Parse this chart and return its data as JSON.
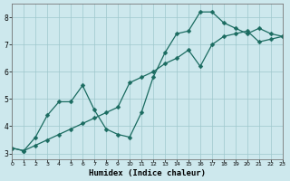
{
  "xlabel": "Humidex (Indice chaleur)",
  "background_color": "#cde8ed",
  "grid_color": "#9ec8cc",
  "line_color": "#1a6b60",
  "x_data": [
    0,
    1,
    2,
    3,
    4,
    5,
    6,
    7,
    8,
    9,
    10,
    11,
    12,
    13,
    14,
    15,
    16,
    17,
    18,
    19,
    20,
    21,
    22,
    23
  ],
  "y_line1": [
    3.2,
    3.1,
    3.6,
    4.4,
    4.9,
    4.9,
    5.5,
    4.6,
    3.9,
    3.7,
    3.6,
    4.5,
    5.8,
    6.7,
    7.4,
    7.5,
    8.2,
    8.2,
    7.8,
    7.6,
    7.4,
    7.6,
    7.4,
    7.3
  ],
  "y_line2": [
    3.2,
    3.1,
    3.3,
    3.5,
    3.7,
    3.9,
    4.1,
    4.3,
    4.5,
    4.7,
    5.6,
    5.8,
    6.0,
    6.3,
    6.5,
    6.8,
    6.2,
    7.0,
    7.3,
    7.4,
    7.5,
    7.1,
    7.2,
    7.3
  ],
  "ylim": [
    2.8,
    8.5
  ],
  "xlim": [
    0,
    23
  ],
  "yticks": [
    3,
    4,
    5,
    6,
    7,
    8
  ],
  "xticks": [
    0,
    1,
    2,
    3,
    4,
    5,
    6,
    7,
    8,
    9,
    10,
    11,
    12,
    13,
    14,
    15,
    16,
    17,
    18,
    19,
    20,
    21,
    22,
    23
  ],
  "markersize": 2.5,
  "linewidth": 0.9
}
